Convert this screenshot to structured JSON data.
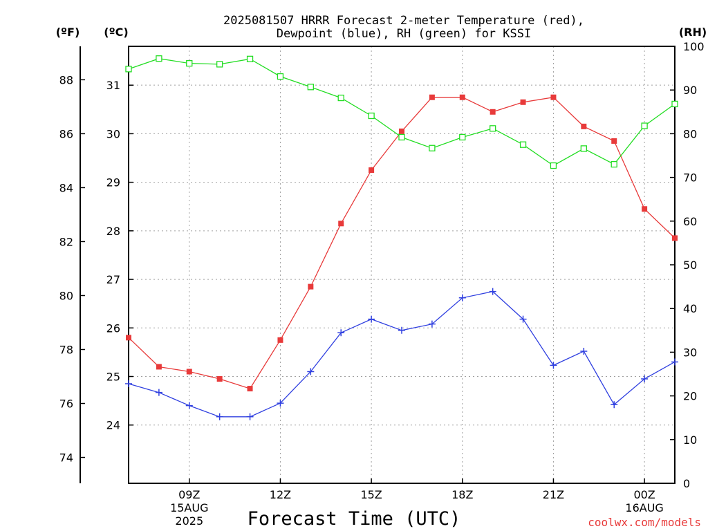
{
  "chart_data": {
    "type": "line",
    "title_lines": [
      "2025081507 HRRR Forecast 2-meter Temperature (red),",
      "Dewpoint (blue), RH (green) for KSSI"
    ],
    "xlabel": "Forecast Time (UTC)",
    "credit": "coolwx.com/models",
    "units": {
      "fahrenheit": "(ºF)",
      "celsius": "(ºC)",
      "rh": "(RH)"
    },
    "x_hours": [
      7,
      8,
      9,
      10,
      11,
      12,
      13,
      14,
      15,
      16,
      17,
      18,
      19,
      20,
      21,
      22,
      23,
      24,
      25
    ],
    "xlim": [
      7,
      25
    ],
    "x_ticks": [
      {
        "hour": 9,
        "lines": [
          "09Z",
          "15AUG",
          "2025"
        ]
      },
      {
        "hour": 12,
        "lines": [
          "12Z"
        ]
      },
      {
        "hour": 15,
        "lines": [
          "15Z"
        ]
      },
      {
        "hour": 18,
        "lines": [
          "18Z"
        ]
      },
      {
        "hour": 21,
        "lines": [
          "21Z"
        ]
      },
      {
        "hour": 24,
        "lines": [
          "00Z",
          "16AUG"
        ]
      }
    ],
    "celsius_axis": {
      "ylim": [
        22.8,
        31.8
      ],
      "ticks": [
        24,
        25,
        26,
        27,
        28,
        29,
        30,
        31
      ]
    },
    "fahrenheit_axis": {
      "ticks": [
        74,
        76,
        78,
        80,
        82,
        84,
        86,
        88
      ]
    },
    "rh_axis": {
      "ylim": [
        0,
        100
      ],
      "ticks": [
        0,
        10,
        20,
        30,
        40,
        50,
        60,
        70,
        80,
        90,
        100
      ]
    },
    "series": [
      {
        "key": "temperature",
        "color": "#e83a3a",
        "marker": "filled-square",
        "axis": "celsius",
        "values": [
          25.8,
          25.2,
          25.1,
          24.95,
          24.75,
          25.75,
          26.85,
          28.15,
          29.25,
          30.05,
          30.75,
          30.75,
          30.45,
          30.65,
          30.75,
          30.15,
          29.85,
          28.45,
          27.85
        ]
      },
      {
        "key": "dewpoint",
        "color": "#3040e0",
        "marker": "plus",
        "axis": "celsius",
        "values": [
          24.85,
          24.67,
          24.4,
          24.17,
          24.17,
          24.45,
          25.1,
          25.9,
          26.18,
          25.95,
          26.08,
          26.62,
          26.75,
          26.18,
          25.23,
          25.52,
          24.42,
          24.95,
          25.3
        ]
      },
      {
        "key": "rh",
        "color": "#22dd22",
        "marker": "open-square",
        "axis": "rh",
        "values": [
          94.8,
          97.2,
          96.1,
          95.9,
          97.1,
          93.1,
          90.7,
          88.2,
          84.1,
          79.2,
          76.7,
          79.2,
          81.2,
          77.5,
          72.7,
          76.6,
          73.0,
          81.8,
          86.8
        ]
      }
    ]
  }
}
